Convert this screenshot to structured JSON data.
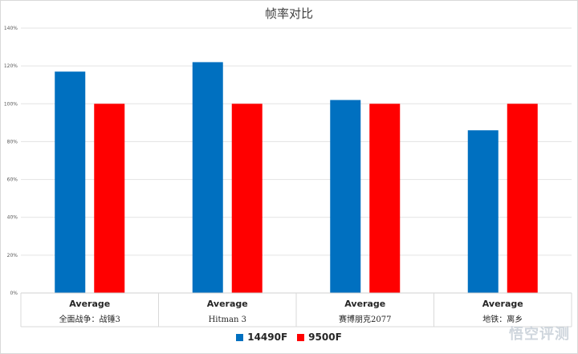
{
  "chart_data": {
    "type": "bar",
    "title": "帧率对比",
    "categories": [
      {
        "label": "Average",
        "sublabel": "全面战争：战锤3"
      },
      {
        "label": "Average",
        "sublabel": "Hitman 3"
      },
      {
        "label": "Average",
        "sublabel": "赛博朋克2077"
      },
      {
        "label": "Average",
        "sublabel": "地铁：离乡"
      }
    ],
    "series": [
      {
        "name": "14490F",
        "color": "#0070C0",
        "values": [
          117,
          122,
          102,
          86
        ]
      },
      {
        "name": "9500F",
        "color": "#FF0000",
        "values": [
          100,
          100,
          100,
          100
        ]
      }
    ],
    "ylim": [
      0,
      140
    ],
    "yticks": [
      "0%",
      "20%",
      "40%",
      "60%",
      "80%",
      "100%",
      "120%",
      "140%"
    ],
    "ytick_values": [
      0,
      20,
      40,
      60,
      80,
      100,
      120,
      140
    ],
    "grid": true,
    "legend_position": "bottom"
  },
  "watermark": "悟空评测"
}
